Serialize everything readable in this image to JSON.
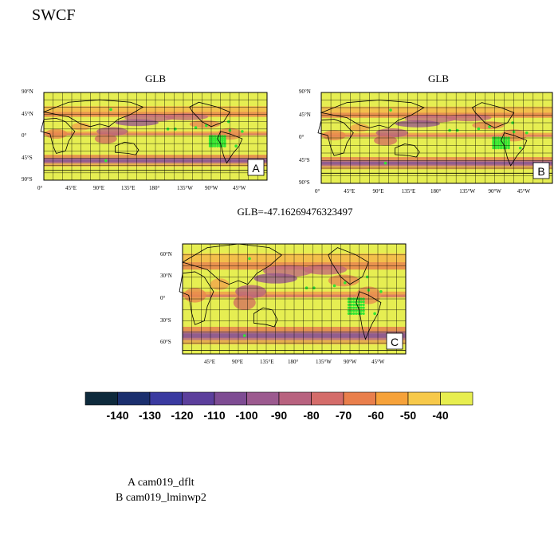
{
  "page_title": "SWCF",
  "panels": [
    {
      "id": "A",
      "title": "GLB",
      "tag": "A",
      "lat_labels": [
        "90°N",
        "45°N",
        "0°",
        "45°S",
        "90°S"
      ],
      "lon_labels": [
        "0°",
        "45°E",
        "90°E",
        "135°E",
        "180°",
        "135°W",
        "90°W",
        "45°W"
      ]
    },
    {
      "id": "B",
      "title": "GLB",
      "tag": "B",
      "lat_labels": [
        "90°N",
        "45°N",
        "0°",
        "45°S",
        "90°S"
      ],
      "lon_labels": [
        "0°",
        "45°E",
        "90°E",
        "135°E",
        "180°",
        "135°W",
        "90°W",
        "45°W"
      ]
    },
    {
      "id": "C",
      "title": "GLB=-47.16269476323497",
      "tag": "C",
      "lat_labels": [
        "60°N",
        "30°N",
        "0°",
        "30°S",
        "60°S"
      ],
      "lon_labels": [
        "45°E",
        "90°E",
        "135°E",
        "180°",
        "135°W",
        "90°W",
        "45°W"
      ]
    }
  ],
  "colorbar": {
    "labels": [
      "-140",
      "-130",
      "-120",
      "-110",
      "-100",
      "-90",
      "-80",
      "-70",
      "-60",
      "-50",
      "-40"
    ],
    "colors": [
      "#0e2a3c",
      "#1b2f6e",
      "#3a3aa0",
      "#5c3f9c",
      "#7e4c93",
      "#9c5a8f",
      "#b8627f",
      "#d46c6a",
      "#e97f4c",
      "#f6a23a",
      "#f7c94a",
      "#e7ee4f"
    ]
  },
  "legend": {
    "line_a": "A  cam019_dflt",
    "line_b": "B  cam019_lminwp2"
  }
}
